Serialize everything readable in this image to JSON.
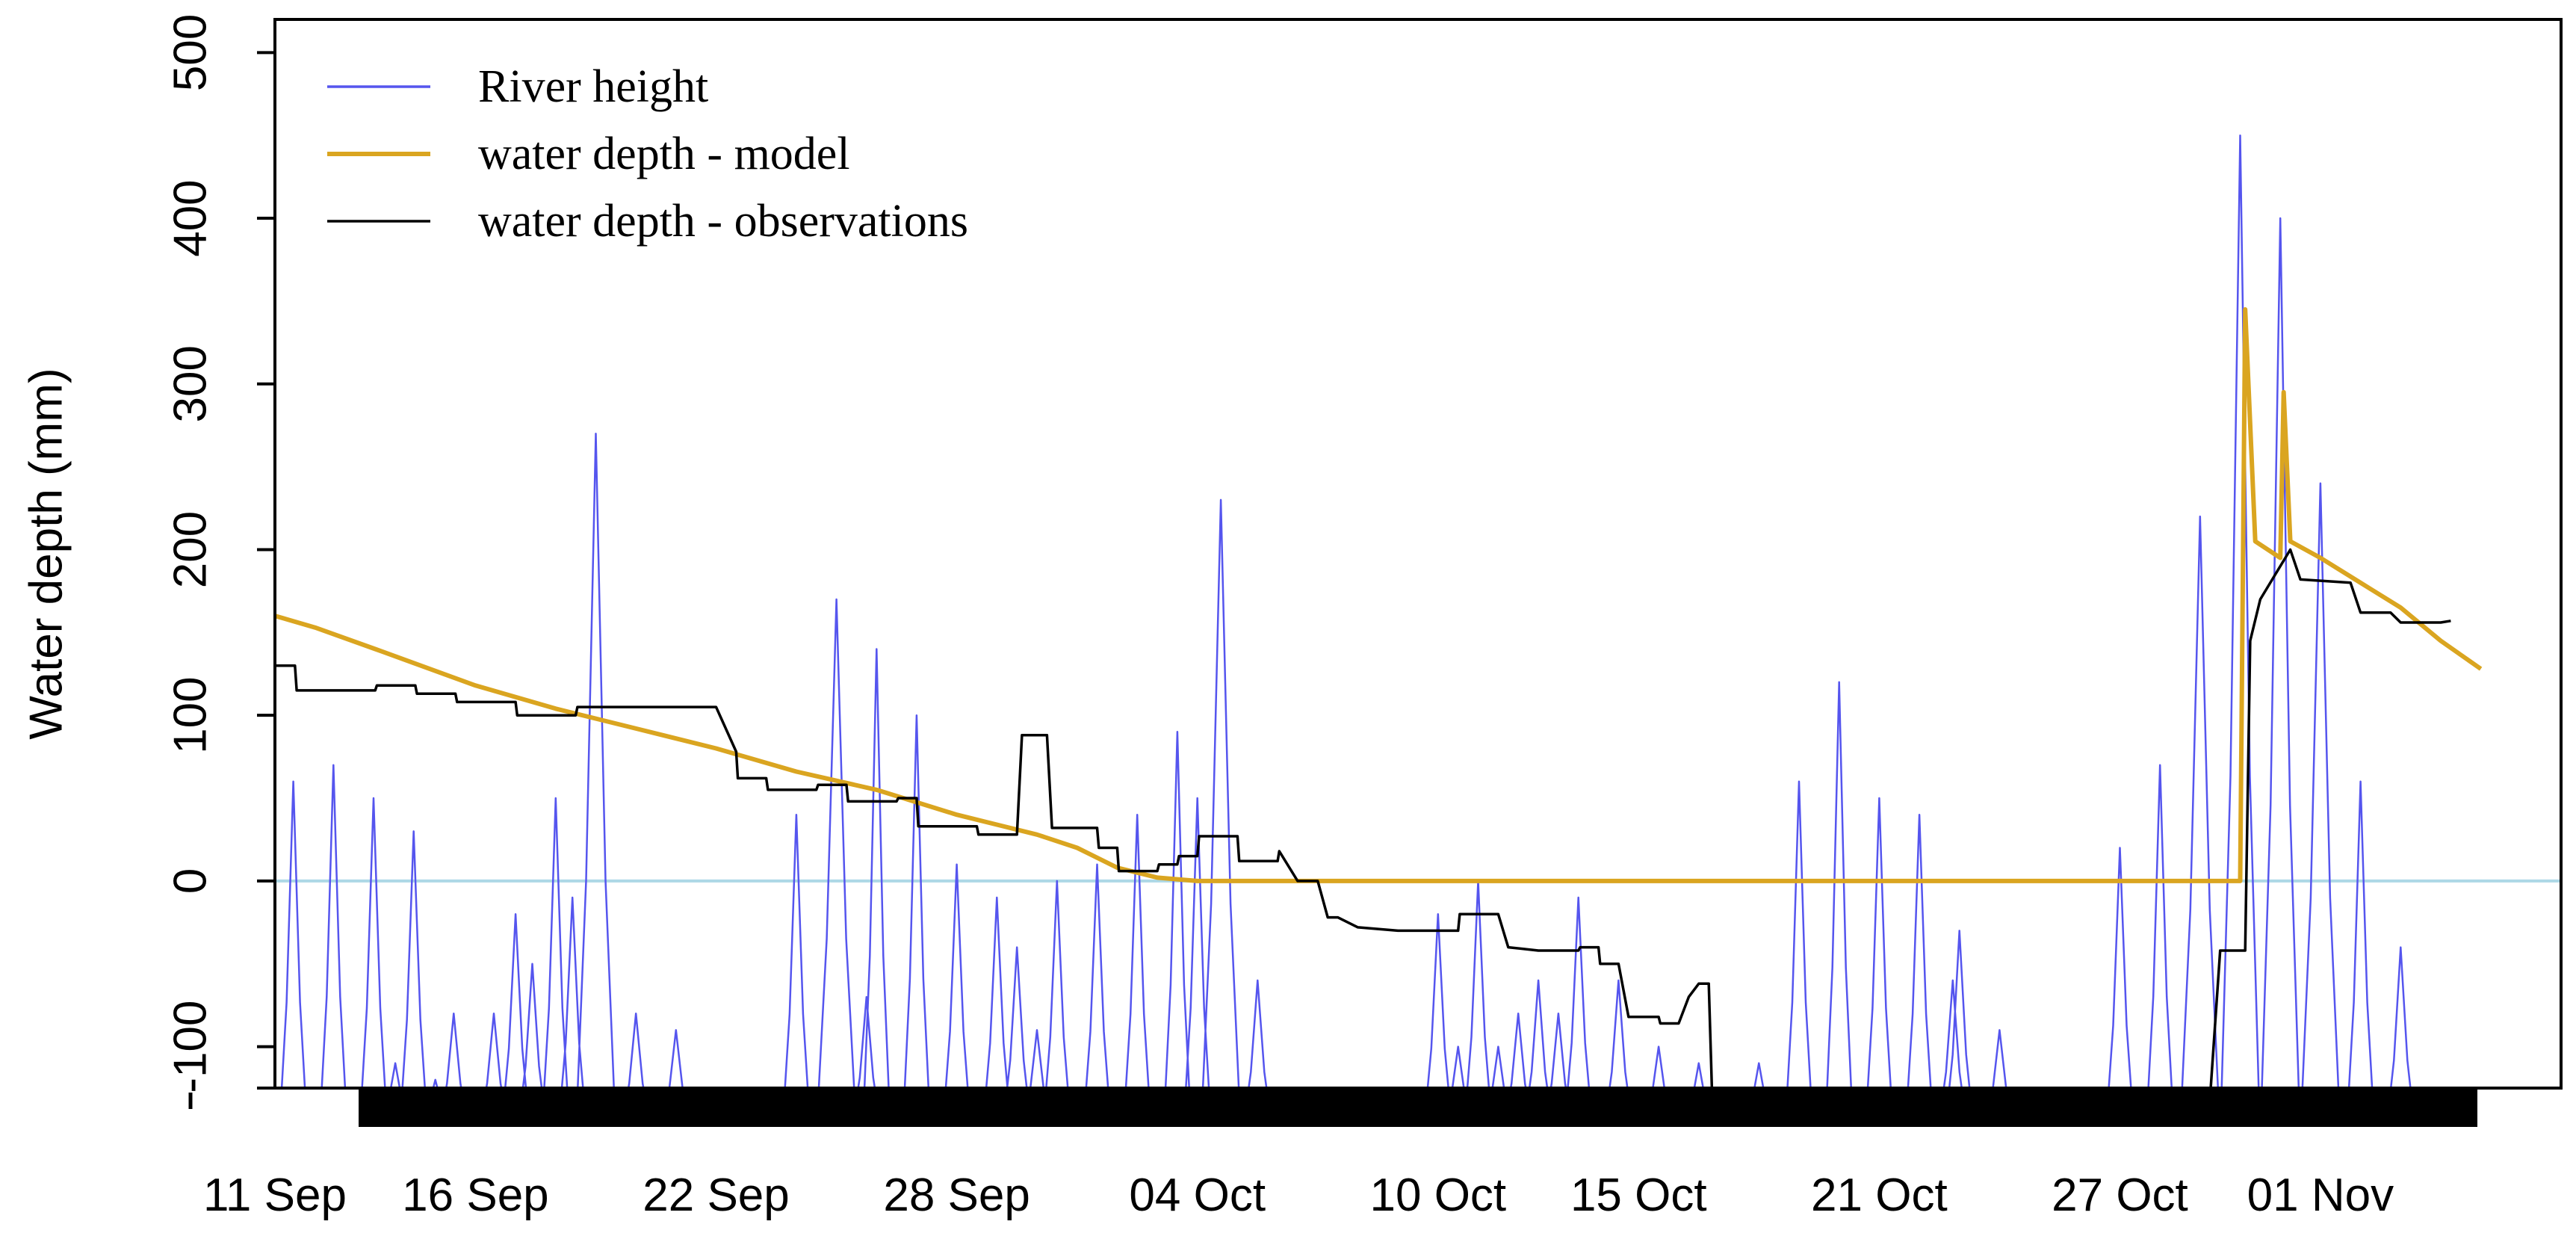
{
  "chart_data": {
    "type": "line",
    "title": "",
    "xlabel": "",
    "ylabel": "Water depth (mm)",
    "xlim": [
      "2014-09-11",
      "2014-11-07"
    ],
    "ylim": [
      -125,
      520
    ],
    "y_ticks": [
      -100,
      0,
      100,
      200,
      300,
      400,
      500
    ],
    "y_tick_labels": [
      "-100",
      "0",
      "100",
      "200",
      "300",
      "400",
      "500"
    ],
    "x_ticks": [
      {
        "date": "2014-09-11",
        "label": "11 Sep"
      },
      {
        "date": "2014-09-16",
        "label": "16 Sep"
      },
      {
        "date": "2014-09-22",
        "label": "22 Sep"
      },
      {
        "date": "2014-09-28",
        "label": "28 Sep"
      },
      {
        "date": "2014-10-04",
        "label": "04 Oct"
      },
      {
        "date": "2014-10-10",
        "label": "10 Oct"
      },
      {
        "date": "2014-10-15",
        "label": "15 Oct"
      },
      {
        "date": "2014-10-21",
        "label": "21 Oct"
      },
      {
        "date": "2014-10-27",
        "label": "27 Oct"
      },
      {
        "date": "2014-11-01",
        "label": "01 Nov"
      }
    ],
    "grid": false,
    "legend_position": "top-left",
    "zero_line": {
      "y": 0,
      "color": "#add8e6"
    },
    "series": [
      {
        "name": "River height",
        "color": "#5555ee",
        "kind": "tides",
        "peaks": [
          [
            "2014-09-11 11:00",
            60
          ],
          [
            "2014-09-12 05:00",
            -140
          ],
          [
            "2014-09-12 11:00",
            70
          ],
          [
            "2014-09-13 05:00",
            -145
          ],
          [
            "2014-09-13 11:00",
            50
          ],
          [
            "2014-09-14 00:00",
            -110
          ],
          [
            "2014-09-14 11:00",
            30
          ],
          [
            "2014-09-15 00:00",
            -120
          ],
          [
            "2014-09-15 11:00",
            -80
          ],
          [
            "2014-09-16 00:00",
            -125
          ],
          [
            "2014-09-16 11:00",
            -80
          ],
          [
            "2014-09-17 00:00",
            -20
          ],
          [
            "2014-09-17 10:00",
            -50
          ],
          [
            "2014-09-18 00:00",
            50
          ],
          [
            "2014-09-18 10:00",
            -10
          ],
          [
            "2014-09-19 00:00",
            270
          ],
          [
            "2014-09-20 00:00",
            -80
          ],
          [
            "2014-09-21 00:00",
            -90
          ],
          [
            "2014-09-24 00:00",
            40
          ],
          [
            "2014-09-25 00:00",
            170
          ],
          [
            "2014-09-25 18:00",
            -70
          ],
          [
            "2014-09-26 00:00",
            140
          ],
          [
            "2014-09-27 00:00",
            100
          ],
          [
            "2014-09-28 00:00",
            10
          ],
          [
            "2014-09-29 00:00",
            -10
          ],
          [
            "2014-09-29 12:00",
            -40
          ],
          [
            "2014-09-30 00:00",
            -90
          ],
          [
            "2014-09-30 12:00",
            0
          ],
          [
            "2014-10-01 12:00",
            10
          ],
          [
            "2014-10-02 12:00",
            40
          ],
          [
            "2014-10-03 12:00",
            90
          ],
          [
            "2014-10-04 00:00",
            50
          ],
          [
            "2014-10-04 14:00",
            230
          ],
          [
            "2014-10-05 12:00",
            -60
          ],
          [
            "2014-10-10 00:00",
            -20
          ],
          [
            "2014-10-10 12:00",
            -100
          ],
          [
            "2014-10-11 00:00",
            0
          ],
          [
            "2014-10-11 12:00",
            -100
          ],
          [
            "2014-10-12 00:00",
            -80
          ],
          [
            "2014-10-12 12:00",
            -60
          ],
          [
            "2014-10-13 00:00",
            -80
          ],
          [
            "2014-10-13 12:00",
            -10
          ],
          [
            "2014-10-14 12:00",
            -60
          ],
          [
            "2014-10-15 12:00",
            -100
          ],
          [
            "2014-10-16 12:00",
            -110
          ],
          [
            "2014-10-18 00:00",
            -110
          ],
          [
            "2014-10-19 00:00",
            60
          ],
          [
            "2014-10-20 00:00",
            120
          ],
          [
            "2014-10-21 00:00",
            50
          ],
          [
            "2014-10-22 00:00",
            40
          ],
          [
            "2014-10-22 20:00",
            -60
          ],
          [
            "2014-10-23 00:00",
            -30
          ],
          [
            "2014-10-24 00:00",
            -90
          ],
          [
            "2014-10-27 00:00",
            20
          ],
          [
            "2014-10-28 00:00",
            70
          ],
          [
            "2014-10-29 00:00",
            220
          ],
          [
            "2014-10-30 00:00",
            450
          ],
          [
            "2014-10-31 00:00",
            400
          ],
          [
            "2014-11-01 00:00",
            240
          ],
          [
            "2014-11-02 00:00",
            60
          ],
          [
            "2014-11-03 00:00",
            -40
          ]
        ]
      },
      {
        "name": "water depth - model",
        "color": "#daa520",
        "points": [
          [
            "2014-09-11 00:00",
            160
          ],
          [
            "2014-09-12 00:00",
            153
          ],
          [
            "2014-09-13 12:00",
            140
          ],
          [
            "2014-09-16 00:00",
            118
          ],
          [
            "2014-09-18 00:00",
            104
          ],
          [
            "2014-09-20 00:00",
            92
          ],
          [
            "2014-09-22 00:00",
            80
          ],
          [
            "2014-09-24 00:00",
            66
          ],
          [
            "2014-09-26 00:00",
            55
          ],
          [
            "2014-09-28 00:00",
            40
          ],
          [
            "2014-09-29 00:00",
            34
          ],
          [
            "2014-09-30 00:00",
            28
          ],
          [
            "2014-10-01 00:00",
            20
          ],
          [
            "2014-10-02 00:00",
            8
          ],
          [
            "2014-10-03 00:00",
            2
          ],
          [
            "2014-10-04 00:00",
            0
          ],
          [
            "2014-10-30 00:00",
            0
          ],
          [
            "2014-10-30 03:00",
            345
          ],
          [
            "2014-10-30 09:00",
            205
          ],
          [
            "2014-10-31 00:00",
            195
          ],
          [
            "2014-10-31 02:00",
            295
          ],
          [
            "2014-10-31 06:00",
            205
          ],
          [
            "2014-11-01 00:00",
            195
          ],
          [
            "2014-11-02 00:00",
            180
          ],
          [
            "2014-11-03 00:00",
            165
          ],
          [
            "2014-11-04 00:00",
            145
          ],
          [
            "2014-11-05 00:00",
            128
          ]
        ]
      },
      {
        "name": "water depth - observations",
        "color": "#000000",
        "points": [
          [
            "2014-09-11 00:00",
            130
          ],
          [
            "2014-09-11 12:00",
            130
          ],
          [
            "2014-09-11 13:00",
            115
          ],
          [
            "2014-09-13 12:00",
            115
          ],
          [
            "2014-09-13 13:00",
            118
          ],
          [
            "2014-09-14 12:00",
            118
          ],
          [
            "2014-09-14 13:00",
            113
          ],
          [
            "2014-09-15 12:00",
            113
          ],
          [
            "2014-09-15 13:00",
            108
          ],
          [
            "2014-09-17 00:00",
            108
          ],
          [
            "2014-09-17 01:00",
            100
          ],
          [
            "2014-09-18 12:00",
            100
          ],
          [
            "2014-09-18 13:00",
            105
          ],
          [
            "2014-09-22 00:00",
            105
          ],
          [
            "2014-09-22 12:00",
            78
          ],
          [
            "2014-09-22 13:00",
            62
          ],
          [
            "2014-09-23 06:00",
            62
          ],
          [
            "2014-09-23 07:00",
            55
          ],
          [
            "2014-09-24 12:00",
            55
          ],
          [
            "2014-09-24 13:00",
            58
          ],
          [
            "2014-09-25 06:00",
            58
          ],
          [
            "2014-09-25 07:00",
            48
          ],
          [
            "2014-09-26 12:00",
            48
          ],
          [
            "2014-09-26 13:00",
            50
          ],
          [
            "2014-09-27 00:00",
            50
          ],
          [
            "2014-09-27 01:00",
            33
          ],
          [
            "2014-09-28 12:00",
            33
          ],
          [
            "2014-09-28 13:00",
            28
          ],
          [
            "2014-09-29 12:00",
            28
          ],
          [
            "2014-09-29 15:00",
            88
          ],
          [
            "2014-09-30 06:00",
            88
          ],
          [
            "2014-09-30 09:00",
            32
          ],
          [
            "2014-10-01 12:00",
            32
          ],
          [
            "2014-10-01 13:00",
            20
          ],
          [
            "2014-10-02 00:00",
            20
          ],
          [
            "2014-10-02 01:00",
            6
          ],
          [
            "2014-10-03 00:00",
            6
          ],
          [
            "2014-10-03 01:00",
            10
          ],
          [
            "2014-10-03 12:00",
            10
          ],
          [
            "2014-10-03 13:00",
            15
          ],
          [
            "2014-10-04 00:00",
            15
          ],
          [
            "2014-10-04 01:00",
            27
          ],
          [
            "2014-10-05 00:00",
            27
          ],
          [
            "2014-10-05 01:00",
            12
          ],
          [
            "2014-10-06 00:00",
            12
          ],
          [
            "2014-10-06 01:00",
            18
          ],
          [
            "2014-10-06 12:00",
            0
          ],
          [
            "2014-10-07 00:00",
            0
          ],
          [
            "2014-10-07 06:00",
            -22
          ],
          [
            "2014-10-07 12:00",
            -22
          ],
          [
            "2014-10-08 00:00",
            -28
          ],
          [
            "2014-10-09 00:00",
            -30
          ],
          [
            "2014-10-10 12:00",
            -30
          ],
          [
            "2014-10-10 13:00",
            -20
          ],
          [
            "2014-10-11 12:00",
            -20
          ],
          [
            "2014-10-11 18:00",
            -40
          ],
          [
            "2014-10-12 12:00",
            -42
          ],
          [
            "2014-10-13 12:00",
            -42
          ],
          [
            "2014-10-13 13:00",
            -40
          ],
          [
            "2014-10-14 00:00",
            -40
          ],
          [
            "2014-10-14 01:00",
            -50
          ],
          [
            "2014-10-14 12:00",
            -50
          ],
          [
            "2014-10-14 18:00",
            -82
          ],
          [
            "2014-10-15 12:00",
            -82
          ],
          [
            "2014-10-15 13:00",
            -86
          ],
          [
            "2014-10-16 00:00",
            -86
          ],
          [
            "2014-10-16 06:00",
            -70
          ],
          [
            "2014-10-16 12:00",
            -62
          ],
          [
            "2014-10-16 18:00",
            -62
          ],
          [
            "2014-10-16 20:00",
            -130
          ],
          [
            "2014-10-29 06:00",
            -130
          ],
          [
            "2014-10-29 12:00",
            -42
          ],
          [
            "2014-10-30 03:00",
            -42
          ],
          [
            "2014-10-30 06:00",
            145
          ],
          [
            "2014-10-30 12:00",
            170
          ],
          [
            "2014-10-31 00:00",
            190
          ],
          [
            "2014-10-31 06:00",
            200
          ],
          [
            "2014-10-31 12:00",
            182
          ],
          [
            "2014-11-01 18:00",
            180
          ],
          [
            "2014-11-02 00:00",
            162
          ],
          [
            "2014-11-02 18:00",
            162
          ],
          [
            "2014-11-03 00:00",
            156
          ],
          [
            "2014-11-04 00:00",
            156
          ],
          [
            "2014-11-04 06:00",
            157
          ]
        ]
      }
    ]
  }
}
